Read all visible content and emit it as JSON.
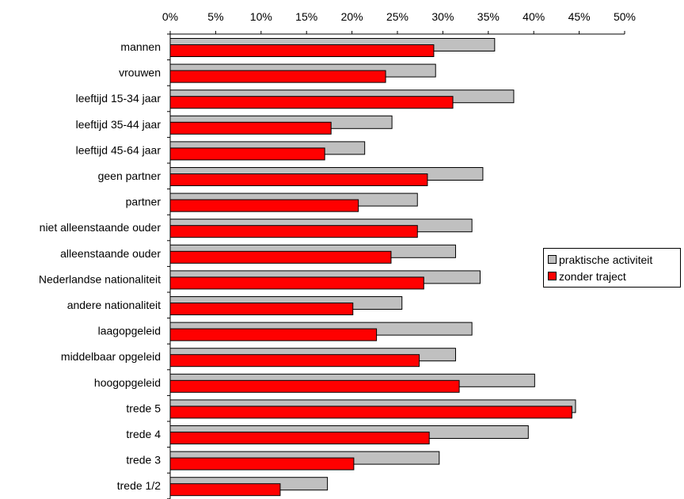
{
  "chart_data": {
    "type": "bar",
    "orientation": "horizontal",
    "categories": [
      "mannen",
      "vrouwen",
      "leeftijd 15-34 jaar",
      "leeftijd 35-44 jaar",
      "leeftijd 45-64 jaar",
      "geen partner",
      "partner",
      "niet alleenstaande ouder",
      "alleenstaande ouder",
      "Nederlandse nationaliteit",
      "andere nationaliteit",
      "laagopgeleid",
      "middelbaar opgeleid",
      "hoogopgeleid",
      "trede 5",
      "trede 4",
      "trede 3",
      "trede 1/2"
    ],
    "series": [
      {
        "name": "praktische activiteit",
        "color": "#c0c0c0",
        "values": [
          35.7,
          29.2,
          37.8,
          24.4,
          21.4,
          34.4,
          27.2,
          33.2,
          31.4,
          34.1,
          25.5,
          33.2,
          31.4,
          40.1,
          44.6,
          39.4,
          29.6,
          17.3
        ]
      },
      {
        "name": "zonder traject",
        "color": "#ff0000",
        "values": [
          29.0,
          23.7,
          31.1,
          17.7,
          17.0,
          28.3,
          20.7,
          27.2,
          24.3,
          27.9,
          20.1,
          22.7,
          27.4,
          31.8,
          44.2,
          28.5,
          20.2,
          12.1
        ]
      }
    ],
    "xlim": [
      0,
      50
    ],
    "xticks": [
      "0%",
      "5%",
      "10%",
      "15%",
      "20%",
      "25%",
      "30%",
      "35%",
      "40%",
      "45%",
      "50%"
    ],
    "xaxis_position": "top",
    "grid": false,
    "legend_position": "right"
  }
}
